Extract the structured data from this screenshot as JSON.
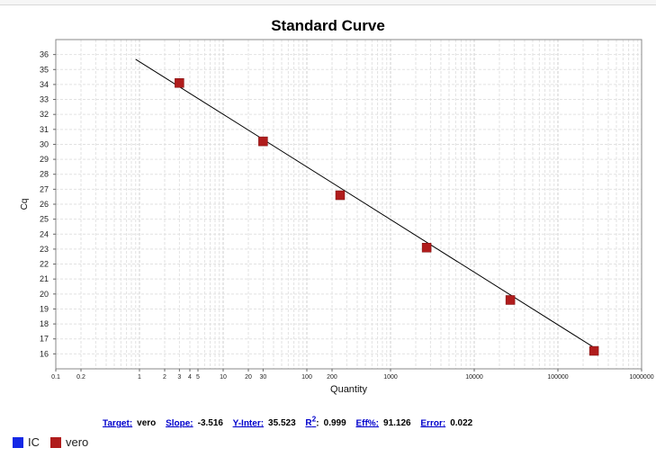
{
  "chart_data": {
    "type": "scatter",
    "title": "Standard Curve",
    "xlabel": "Quantity",
    "ylabel": "Cq",
    "x_scale": "log",
    "xlim": [
      0.1,
      1000000
    ],
    "ylim": [
      15,
      37
    ],
    "x_ticks": [
      {
        "value": 0.1,
        "label": "0.1"
      },
      {
        "value": 0.2,
        "label": "0.2"
      },
      {
        "value": 1,
        "label": "1"
      },
      {
        "value": 2,
        "label": "2"
      },
      {
        "value": 3,
        "label": "3"
      },
      {
        "value": 4,
        "label": "4"
      },
      {
        "value": 5,
        "label": "5"
      },
      {
        "value": 10,
        "label": "10"
      },
      {
        "value": 20,
        "label": "20"
      },
      {
        "value": 30,
        "label": "30"
      },
      {
        "value": 100,
        "label": "100"
      },
      {
        "value": 200,
        "label": "200"
      },
      {
        "value": 1000,
        "label": "1000"
      },
      {
        "value": 10000,
        "label": "10000"
      },
      {
        "value": 100000,
        "label": "100000"
      },
      {
        "value": 1000000,
        "label": "1000000"
      }
    ],
    "y_ticks": [
      {
        "value": 16,
        "label": "16"
      },
      {
        "value": 17,
        "label": "17"
      },
      {
        "value": 18,
        "label": "18"
      },
      {
        "value": 19,
        "label": "19"
      },
      {
        "value": 20,
        "label": "20"
      },
      {
        "value": 21,
        "label": "21"
      },
      {
        "value": 22,
        "label": "22"
      },
      {
        "value": 23,
        "label": "23"
      },
      {
        "value": 24,
        "label": "24"
      },
      {
        "value": 25,
        "label": "25"
      },
      {
        "value": 26,
        "label": "26"
      },
      {
        "value": 27,
        "label": "27"
      },
      {
        "value": 28,
        "label": "28"
      },
      {
        "value": 29,
        "label": "29"
      },
      {
        "value": 30,
        "label": "30"
      },
      {
        "value": 31,
        "label": "31"
      },
      {
        "value": 32,
        "label": "32"
      },
      {
        "value": 33,
        "label": "33"
      },
      {
        "value": 34,
        "label": "34"
      },
      {
        "value": 35,
        "label": "35"
      },
      {
        "value": 36,
        "label": "36"
      }
    ],
    "grid": true,
    "series": [
      {
        "name": "vero",
        "color": "#b01c1c",
        "marker": "square",
        "x": [
          3,
          30,
          250,
          2700,
          27000,
          270000
        ],
        "y": [
          34.1,
          30.2,
          26.6,
          23.1,
          19.6,
          16.2
        ]
      }
    ],
    "fit_line": {
      "slope": -3.516,
      "intercept": 35.523,
      "x_range": [
        0.9,
        270000
      ],
      "color": "#000000"
    }
  },
  "stats": [
    {
      "label": "Target:",
      "value": "vero"
    },
    {
      "label": "Slope:",
      "value": "-3.516"
    },
    {
      "label": "Y-Inter:",
      "value": "35.523"
    },
    {
      "label": "R",
      "sup": "2",
      "suffix": ":",
      "value": "0.999"
    },
    {
      "label": "Eff%:",
      "value": "91.126"
    },
    {
      "label": "Error:",
      "value": "0.022"
    }
  ],
  "legend": [
    {
      "label": "IC",
      "color": "#1428e6"
    },
    {
      "label": "vero",
      "color": "#b01c1c"
    }
  ]
}
